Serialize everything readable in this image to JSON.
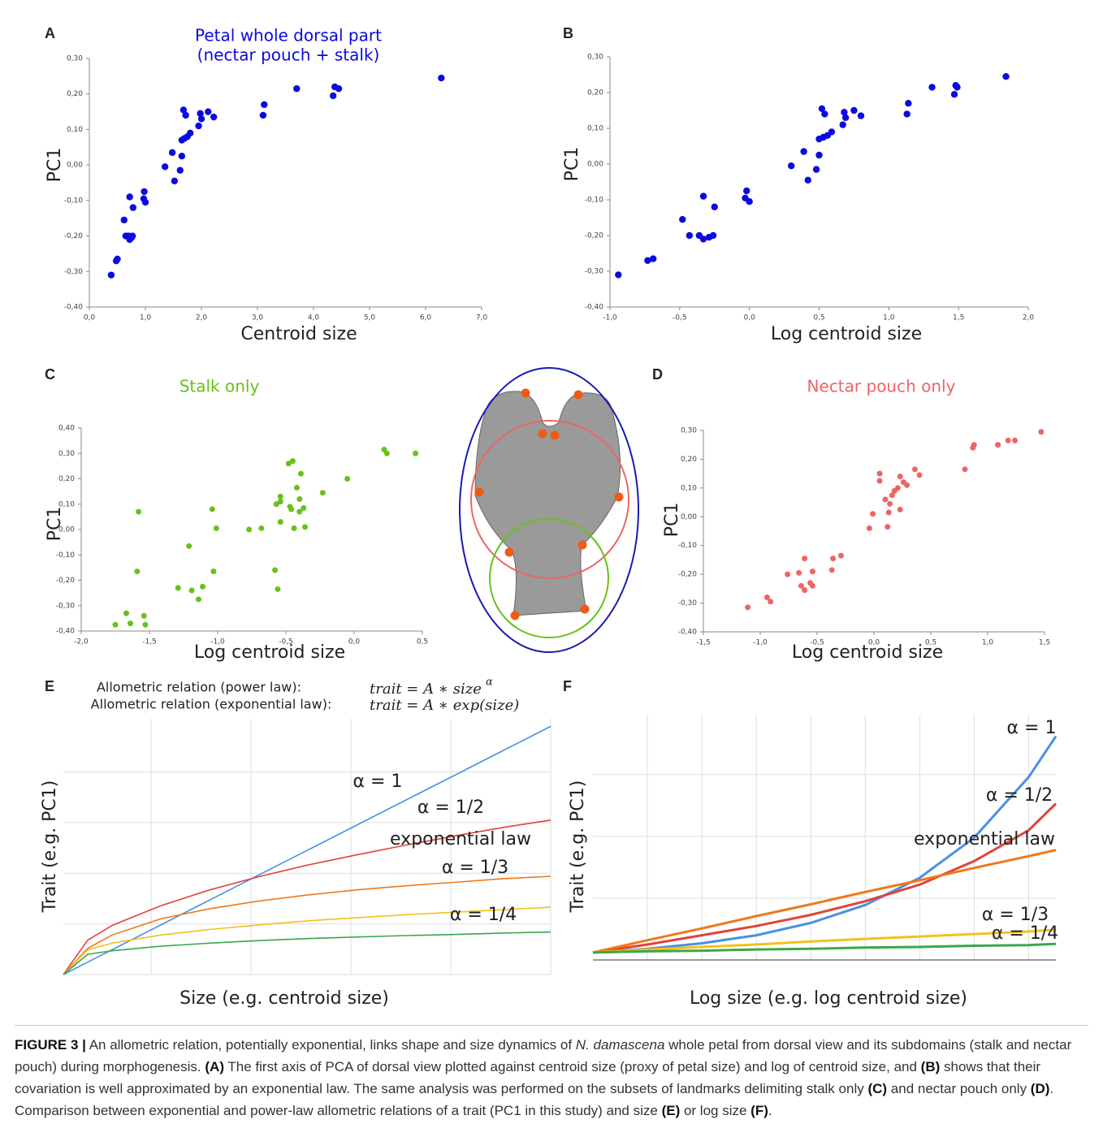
{
  "chart_data": [
    {
      "type": "scatter",
      "panel_label": "A",
      "title": [
        "Petal whole dorsal part",
        "(nectar pouch + stalk)"
      ],
      "x_label": "Centroid size",
      "y_label": "PC1",
      "color": "#0a0ae0",
      "x": [
        0.39,
        0.48,
        0.5,
        0.62,
        0.65,
        0.7,
        0.72,
        0.75,
        0.77,
        0.72,
        0.78,
        0.98,
        0.97,
        1.0,
        1.35,
        1.48,
        1.52,
        1.62,
        1.65,
        1.65,
        1.7,
        1.75,
        1.8,
        1.68,
        1.72,
        1.95,
        1.98,
        2.0,
        2.12,
        2.22,
        3.1,
        3.12,
        3.7,
        4.35,
        4.38,
        4.45,
        6.28
      ],
      "values": [
        -0.31,
        -0.27,
        -0.265,
        -0.155,
        -0.2,
        -0.2,
        -0.21,
        -0.205,
        -0.2,
        -0.09,
        -0.12,
        -0.075,
        -0.095,
        -0.105,
        -0.005,
        0.035,
        -0.045,
        -0.015,
        0.025,
        0.07,
        0.075,
        0.08,
        0.09,
        0.155,
        0.14,
        0.11,
        0.145,
        0.13,
        0.15,
        0.135,
        0.14,
        0.17,
        0.215,
        0.195,
        0.22,
        0.215,
        0.245
      ],
      "xlim": [
        0,
        7
      ],
      "xticks": [
        {
          "value": 0,
          "label": "0,0"
        },
        {
          "value": 1,
          "label": "1,0"
        },
        {
          "value": 2,
          "label": "2,0"
        },
        {
          "value": 3,
          "label": "3,0"
        },
        {
          "value": 4,
          "label": "4,0"
        },
        {
          "value": 5,
          "label": "5,0"
        },
        {
          "value": 6,
          "label": "6,0"
        },
        {
          "value": 7,
          "label": "7,0"
        }
      ],
      "ylim": [
        -0.4,
        0.3
      ],
      "yticks": [
        {
          "value": -0.4,
          "label": "-0,40"
        },
        {
          "value": -0.3,
          "label": "-0,30"
        },
        {
          "value": -0.2,
          "label": "-0,20"
        },
        {
          "value": -0.1,
          "label": "-0,10"
        },
        {
          "value": 0,
          "label": "0,00"
        },
        {
          "value": 0.1,
          "label": "0,10"
        },
        {
          "value": 0.2,
          "label": "0,20"
        },
        {
          "value": 0.3,
          "label": "0,30"
        }
      ]
    },
    {
      "type": "scatter",
      "panel_label": "B",
      "x_label": "Log centroid size",
      "y_label": "PC1",
      "color": "#0a0ae0",
      "x": [
        -0.94,
        -0.73,
        -0.69,
        -0.48,
        -0.43,
        -0.36,
        -0.33,
        -0.29,
        -0.26,
        -0.33,
        -0.25,
        -0.02,
        -0.03,
        0,
        0.3,
        0.39,
        0.42,
        0.48,
        0.5,
        0.5,
        0.53,
        0.56,
        0.59,
        0.52,
        0.54,
        0.67,
        0.68,
        0.69,
        0.75,
        0.8,
        1.13,
        1.14,
        1.31,
        1.47,
        1.48,
        1.49,
        1.84
      ],
      "values": [
        -0.31,
        -0.27,
        -0.265,
        -0.155,
        -0.2,
        -0.2,
        -0.21,
        -0.205,
        -0.2,
        -0.09,
        -0.12,
        -0.075,
        -0.095,
        -0.105,
        -0.005,
        0.035,
        -0.045,
        -0.015,
        0.025,
        0.07,
        0.075,
        0.08,
        0.09,
        0.155,
        0.14,
        0.11,
        0.145,
        0.13,
        0.15,
        0.135,
        0.14,
        0.17,
        0.215,
        0.195,
        0.22,
        0.215,
        0.245
      ],
      "xlim": [
        -1,
        2
      ],
      "xticks": [
        {
          "value": -1,
          "label": "-1,0"
        },
        {
          "value": -0.5,
          "label": "-0,5"
        },
        {
          "value": 0,
          "label": "0,0"
        },
        {
          "value": 0.5,
          "label": "0,5"
        },
        {
          "value": 1,
          "label": "1,0"
        },
        {
          "value": 1.5,
          "label": "1,5"
        },
        {
          "value": 2,
          "label": "2,0"
        }
      ],
      "ylim": [
        -0.4,
        0.3
      ],
      "yticks": [
        {
          "value": -0.4,
          "label": "-0,40"
        },
        {
          "value": -0.3,
          "label": "-0,30"
        },
        {
          "value": -0.2,
          "label": "-0,20"
        },
        {
          "value": -0.1,
          "label": "-0,10"
        },
        {
          "value": 0,
          "label": "0,00"
        },
        {
          "value": 0.1,
          "label": "0,10"
        },
        {
          "value": 0.2,
          "label": "0,20"
        },
        {
          "value": 0.3,
          "label": "0,30"
        }
      ]
    },
    {
      "type": "scatter",
      "panel_label": "C",
      "title": [
        "Stalk only"
      ],
      "x_label": "Log centroid size",
      "y_label": "PC1",
      "color": "#66c21a",
      "x": [
        -1.75,
        -1.67,
        -1.64,
        -1.54,
        -1.53,
        -1.58,
        -1.59,
        -1.29,
        -1.21,
        -1.19,
        -1.11,
        -1.14,
        -1.04,
        -1.01,
        -1.03,
        -0.77,
        -0.68,
        -0.58,
        -0.56,
        -0.54,
        -0.57,
        -0.54,
        -0.54,
        -0.48,
        -0.45,
        -0.47,
        -0.46,
        -0.44,
        -0.42,
        -0.4,
        -0.39,
        -0.4,
        -0.37,
        -0.36,
        -0.23,
        -0.05,
        0.22,
        0.24,
        0.45
      ],
      "values": [
        -0.375,
        -0.33,
        -0.37,
        -0.34,
        -0.375,
        0.07,
        -0.165,
        -0.23,
        -0.065,
        -0.24,
        -0.225,
        -0.275,
        0.08,
        0.005,
        -0.165,
        0,
        0.005,
        -0.16,
        -0.235,
        0.03,
        0.1,
        0.13,
        0.11,
        0.26,
        0.27,
        0.09,
        0.08,
        0.005,
        0.165,
        0.12,
        0.22,
        0.07,
        0.085,
        0.01,
        0.145,
        0.2,
        0.315,
        0.3,
        0.3
      ],
      "xlim": [
        -2,
        0.5
      ],
      "xticks": [
        {
          "value": -2,
          "label": "-2,0"
        },
        {
          "value": -1.5,
          "label": "-1,5"
        },
        {
          "value": -1,
          "label": "-1,0"
        },
        {
          "value": -0.5,
          "label": "-0,5"
        },
        {
          "value": 0,
          "label": "0,0"
        },
        {
          "value": 0.5,
          "label": "0,5"
        }
      ],
      "ylim": [
        -0.4,
        0.4
      ],
      "yticks": [
        {
          "value": -0.4,
          "label": "-0,40"
        },
        {
          "value": -0.3,
          "label": "-0,30"
        },
        {
          "value": -0.2,
          "label": "-0,20"
        },
        {
          "value": -0.1,
          "label": "-0,10"
        },
        {
          "value": 0,
          "label": "0,00"
        },
        {
          "value": 0.1,
          "label": "0,10"
        },
        {
          "value": 0.2,
          "label": "0,20"
        },
        {
          "value": 0.3,
          "label": "0,30"
        },
        {
          "value": 0.4,
          "label": "0,40"
        }
      ]
    },
    {
      "type": "scatter",
      "panel_label": "D",
      "title": [
        "Nectar pouch only"
      ],
      "x_label": "Log centroid size",
      "y_label": "PC1",
      "color": "#ee6464",
      "x": [
        -1.11,
        -0.94,
        -0.91,
        -0.76,
        -0.66,
        -0.64,
        -0.61,
        -0.61,
        -0.56,
        -0.54,
        -0.54,
        -0.37,
        -0.36,
        -0.29,
        -0.04,
        -0.01,
        0.05,
        0.05,
        0.1,
        0.12,
        0.13,
        0.14,
        0.16,
        0.18,
        0.21,
        0.23,
        0.23,
        0.26,
        0.29,
        0.36,
        0.4,
        0.8,
        0.87,
        0.88,
        1.09,
        1.18,
        1.24,
        1.47
      ],
      "values": [
        -0.315,
        -0.28,
        -0.295,
        -0.2,
        -0.195,
        -0.24,
        -0.255,
        -0.145,
        -0.23,
        -0.24,
        -0.19,
        -0.185,
        -0.145,
        -0.135,
        -0.04,
        0.01,
        0.125,
        0.15,
        0.06,
        -0.035,
        0.015,
        0.045,
        0.075,
        0.09,
        0.1,
        0.14,
        0.025,
        0.12,
        0.11,
        0.165,
        0.145,
        0.165,
        0.24,
        0.25,
        0.25,
        0.265,
        0.265,
        0.295
      ],
      "xlim": [
        -1.5,
        1.5
      ],
      "xticks": [
        {
          "value": -1.5,
          "label": "-1,5"
        },
        {
          "value": -1,
          "label": "-1,0"
        },
        {
          "value": -0.5,
          "label": "-0,5"
        },
        {
          "value": 0,
          "label": "0,0"
        },
        {
          "value": 0.5,
          "label": "0,5"
        },
        {
          "value": 1,
          "label": "1,0"
        },
        {
          "value": 1.5,
          "label": "1,5"
        }
      ],
      "ylim": [
        -0.4,
        0.3
      ],
      "yticks": [
        {
          "value": -0.4,
          "label": "-0,40"
        },
        {
          "value": -0.3,
          "label": "-0,30"
        },
        {
          "value": -0.2,
          "label": "-0,20"
        },
        {
          "value": -0.1,
          "label": "-0,10"
        },
        {
          "value": 0,
          "label": "0,00"
        },
        {
          "value": 0.1,
          "label": "0,10"
        },
        {
          "value": 0.2,
          "label": "0,20"
        },
        {
          "value": 0.3,
          "label": "0,30"
        }
      ]
    },
    {
      "type": "line",
      "panel_label": "E",
      "annotations": [
        "Allometric relation (power law):",
        "Allometric relation (exponential law):"
      ],
      "formulas": [
        "trait  = A ∗ size",
        "trait  = A ∗ exp(size)"
      ],
      "formula_exponent": "α",
      "x_label": "Size (e.g. centroid size)",
      "y_label": "Trait (e.g. PC1)",
      "grid": true,
      "tick_labels": false,
      "x": [
        0,
        0.5,
        1,
        2,
        3,
        4,
        5,
        6,
        7,
        8,
        9,
        10
      ],
      "series": [
        {
          "name": "α = 1",
          "color": "#4a90e2",
          "values": [
            0,
            0.245,
            0.49,
            0.98,
            1.47,
            1.96,
            2.45,
            2.94,
            3.43,
            3.92,
            4.41,
            4.9
          ]
        },
        {
          "name": "α = 1/2",
          "color": "#e0443a",
          "values": [
            0,
            0.68,
            0.97,
            1.36,
            1.67,
            1.93,
            2.16,
            2.36,
            2.55,
            2.73,
            2.9,
            3.05
          ]
        },
        {
          "name": "exponential law",
          "color": "#f07818",
          "values": [
            0,
            0.52,
            0.78,
            1.1,
            1.3,
            1.45,
            1.57,
            1.67,
            1.75,
            1.82,
            1.89,
            1.94
          ]
        },
        {
          "name": "α = 1/3",
          "color": "#f5c018",
          "values": [
            0,
            0.49,
            0.62,
            0.78,
            0.89,
            0.98,
            1.06,
            1.12,
            1.18,
            1.23,
            1.28,
            1.33
          ]
        },
        {
          "name": "α = 1/4",
          "color": "#3aa84a",
          "values": [
            0,
            0.4,
            0.47,
            0.56,
            0.62,
            0.67,
            0.71,
            0.74,
            0.77,
            0.79,
            0.82,
            0.84
          ]
        }
      ],
      "xlim": [
        0,
        10
      ],
      "xticks": [
        1.8,
        3.85,
        5.9,
        7.95,
        10
      ],
      "ylim": [
        0,
        5.05
      ],
      "yticks": [
        1,
        2,
        3,
        4
      ]
    },
    {
      "type": "line",
      "panel_label": "F",
      "x_label": "Log size (e.g. log centroid size)",
      "y_label": "Trait (e.g. PC1)",
      "grid": true,
      "tick_labels": false,
      "x": [
        0,
        1,
        2,
        3,
        4,
        5,
        6,
        7,
        8,
        8.5
      ],
      "series": [
        {
          "name": "α = 1",
          "color": "#4a90e2",
          "values": [
            0.12,
            0.18,
            0.27,
            0.4,
            0.6,
            0.89,
            1.33,
            1.98,
            2.96,
            3.62
          ]
        },
        {
          "name": "α = 1/2",
          "color": "#e0443a",
          "values": [
            0.12,
            0.25,
            0.4,
            0.55,
            0.73,
            0.95,
            1.22,
            1.6,
            2.1,
            2.53
          ]
        },
        {
          "name": "exponential law",
          "color": "#f07818",
          "values": [
            0.12,
            0.32,
            0.51,
            0.71,
            0.9,
            1.1,
            1.29,
            1.49,
            1.68,
            1.78
          ]
        },
        {
          "name": "α = 1/3",
          "color": "#f5c018",
          "values": [
            0.12,
            0.17,
            0.21,
            0.25,
            0.3,
            0.34,
            0.38,
            0.42,
            0.46,
            0.49
          ]
        },
        {
          "name": "α = 1/4",
          "color": "#3aa84a",
          "values": [
            0.12,
            0.14,
            0.15,
            0.17,
            0.18,
            0.2,
            0.21,
            0.23,
            0.24,
            0.26
          ]
        }
      ],
      "xlim": [
        0,
        8.5
      ],
      "xticks": [
        1,
        2,
        3,
        4,
        5,
        6,
        7,
        8
      ],
      "ylim": [
        0,
        3.97
      ],
      "yticks": [
        1,
        2,
        3
      ]
    }
  ],
  "caption": {
    "figure_label": "FIGURE 3 |",
    "parts": [
      "An allometric relation, potentially exponential, links shape and size dynamics of ",
      "N. damascena",
      " whole petal from dorsal view and its subdomains (stalk and nectar pouch) during morphogenesis. ",
      "(A)",
      " The first axis of PCA of dorsal view plotted against centroid size (proxy of petal size) and log of centroid size, and ",
      "(B)",
      " shows that their covariation is well approximated by an exponential law. The same analysis was performed on the subsets of landmarks delimiting stalk only ",
      "(C)",
      " and nectar pouch only ",
      "(D)",
      ". Comparison between exponential and power-law allometric relations of a trait (PC1 in this study) and size ",
      "(E)",
      " or log size ",
      "(F)",
      "."
    ]
  }
}
